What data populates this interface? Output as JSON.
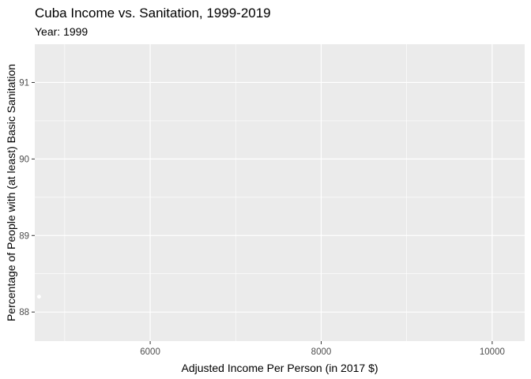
{
  "chart_data": {
    "type": "scatter",
    "title": "Cuba Income vs. Sanitation, 1999-2019",
    "subtitle": "Year: 1999",
    "xlabel": "Adjusted Income Per Person (in 2017 $)",
    "ylabel": "Percentage of People with (at least) Basic Sanitation",
    "xlim": [
      4650,
      10380
    ],
    "ylim": [
      87.62,
      91.5
    ],
    "x_ticks": [
      6000,
      8000,
      10000
    ],
    "x_minor_ticks": [
      5000,
      7000,
      9000
    ],
    "y_ticks": [
      88,
      89,
      90,
      91
    ],
    "y_minor_ticks": [
      88.5,
      89.5,
      90.5
    ],
    "grid": true,
    "background": "#ebebeb",
    "grid_color": "#ffffff",
    "point_color": "#ffffff",
    "points": [
      {
        "x": 4700,
        "y": 88.2
      }
    ]
  }
}
